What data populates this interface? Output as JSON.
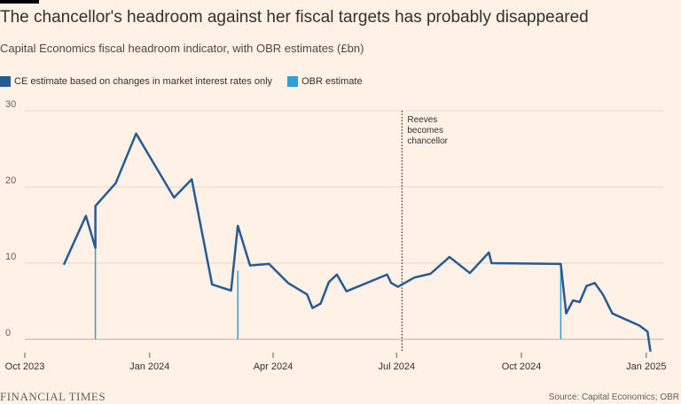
{
  "header": {
    "title": "The chancellor's headroom against her fiscal targets has probably disappeared",
    "subtitle": "Capital Economics fiscal headroom indicator, with OBR estimates (£bn)"
  },
  "footer": {
    "brand": "FINANCIAL TIMES",
    "source": "Source: Capital Economics; OBR"
  },
  "chart_data": {
    "type": "line",
    "title": "The chancellor's headroom against her fiscal targets has probably disappeared",
    "subtitle": "Capital Economics fiscal headroom indicator, with OBR estimates (£bn)",
    "xlabel": "",
    "ylabel": "£bn",
    "grid": true,
    "ylim": [
      0,
      30
    ],
    "xlim": [
      "2023-10-01",
      "2025-01-07"
    ],
    "y_ticks": [
      0,
      10,
      20,
      30
    ],
    "x_ticks": [
      {
        "date": "2023-10-01",
        "label": "Oct 2023"
      },
      {
        "date": "2024-01-01",
        "label": "Jan 2024"
      },
      {
        "date": "2024-04-01",
        "label": "Apr 2024"
      },
      {
        "date": "2024-07-01",
        "label": "Jul 2024"
      },
      {
        "date": "2024-10-01",
        "label": "Oct 2024"
      },
      {
        "date": "2025-01-01",
        "label": "Jan 2025"
      }
    ],
    "series": [
      {
        "name": "CE estimate based on changes in market interest rates only",
        "color": "#265a94",
        "points": [
          {
            "x": "2023-10-30",
            "y": 9.9
          },
          {
            "x": "2023-11-15",
            "y": 16.2
          },
          {
            "x": "2023-11-22",
            "y": 12.0
          },
          {
            "x": "2023-11-22",
            "y": 17.5
          },
          {
            "x": "2023-12-07",
            "y": 20.5
          },
          {
            "x": "2023-12-22",
            "y": 27.0
          },
          {
            "x": "2024-01-03",
            "y": 23.4
          },
          {
            "x": "2024-01-19",
            "y": 18.6
          },
          {
            "x": "2024-02-01",
            "y": 21.0
          },
          {
            "x": "2024-02-16",
            "y": 7.2
          },
          {
            "x": "2024-03-01",
            "y": 6.4
          },
          {
            "x": "2024-03-06",
            "y": 14.9
          },
          {
            "x": "2024-03-15",
            "y": 9.7
          },
          {
            "x": "2024-03-29",
            "y": 9.9
          },
          {
            "x": "2024-04-12",
            "y": 7.4
          },
          {
            "x": "2024-04-26",
            "y": 5.9
          },
          {
            "x": "2024-04-30",
            "y": 4.1
          },
          {
            "x": "2024-05-06",
            "y": 4.7
          },
          {
            "x": "2024-05-12",
            "y": 7.5
          },
          {
            "x": "2024-05-18",
            "y": 8.5
          },
          {
            "x": "2024-05-25",
            "y": 6.3
          },
          {
            "x": "2024-06-24",
            "y": 8.5
          },
          {
            "x": "2024-06-27",
            "y": 7.4
          },
          {
            "x": "2024-07-02",
            "y": 6.9
          },
          {
            "x": "2024-07-14",
            "y": 8.1
          },
          {
            "x": "2024-07-26",
            "y": 8.6
          },
          {
            "x": "2024-08-09",
            "y": 10.8
          },
          {
            "x": "2024-08-24",
            "y": 8.7
          },
          {
            "x": "2024-09-07",
            "y": 11.4
          },
          {
            "x": "2024-09-09",
            "y": 10.0
          },
          {
            "x": "2024-10-30",
            "y": 9.9
          },
          {
            "x": "2024-11-03",
            "y": 3.4
          },
          {
            "x": "2024-11-08",
            "y": 5.1
          },
          {
            "x": "2024-11-13",
            "y": 4.9
          },
          {
            "x": "2024-11-18",
            "y": 7.0
          },
          {
            "x": "2024-11-24",
            "y": 7.4
          },
          {
            "x": "2024-11-30",
            "y": 5.9
          },
          {
            "x": "2024-12-07",
            "y": 3.4
          },
          {
            "x": "2024-12-27",
            "y": 1.8
          },
          {
            "x": "2025-01-02",
            "y": 1.0
          },
          {
            "x": "2025-01-04",
            "y": -1.5
          }
        ]
      },
      {
        "name": "OBR estimate",
        "color": "#2e9fd8",
        "type": "vertical-bar",
        "points": [
          {
            "x": "2023-11-22",
            "y": 12.0
          },
          {
            "x": "2024-03-06",
            "y": 9.0
          },
          {
            "x": "2024-10-30",
            "y": 9.9
          }
        ]
      }
    ],
    "annotations": [
      {
        "date": "2024-07-05",
        "style": "dotted-vertical-line",
        "lines": [
          "Reeves",
          "becomes",
          "chancellor"
        ]
      }
    ]
  }
}
